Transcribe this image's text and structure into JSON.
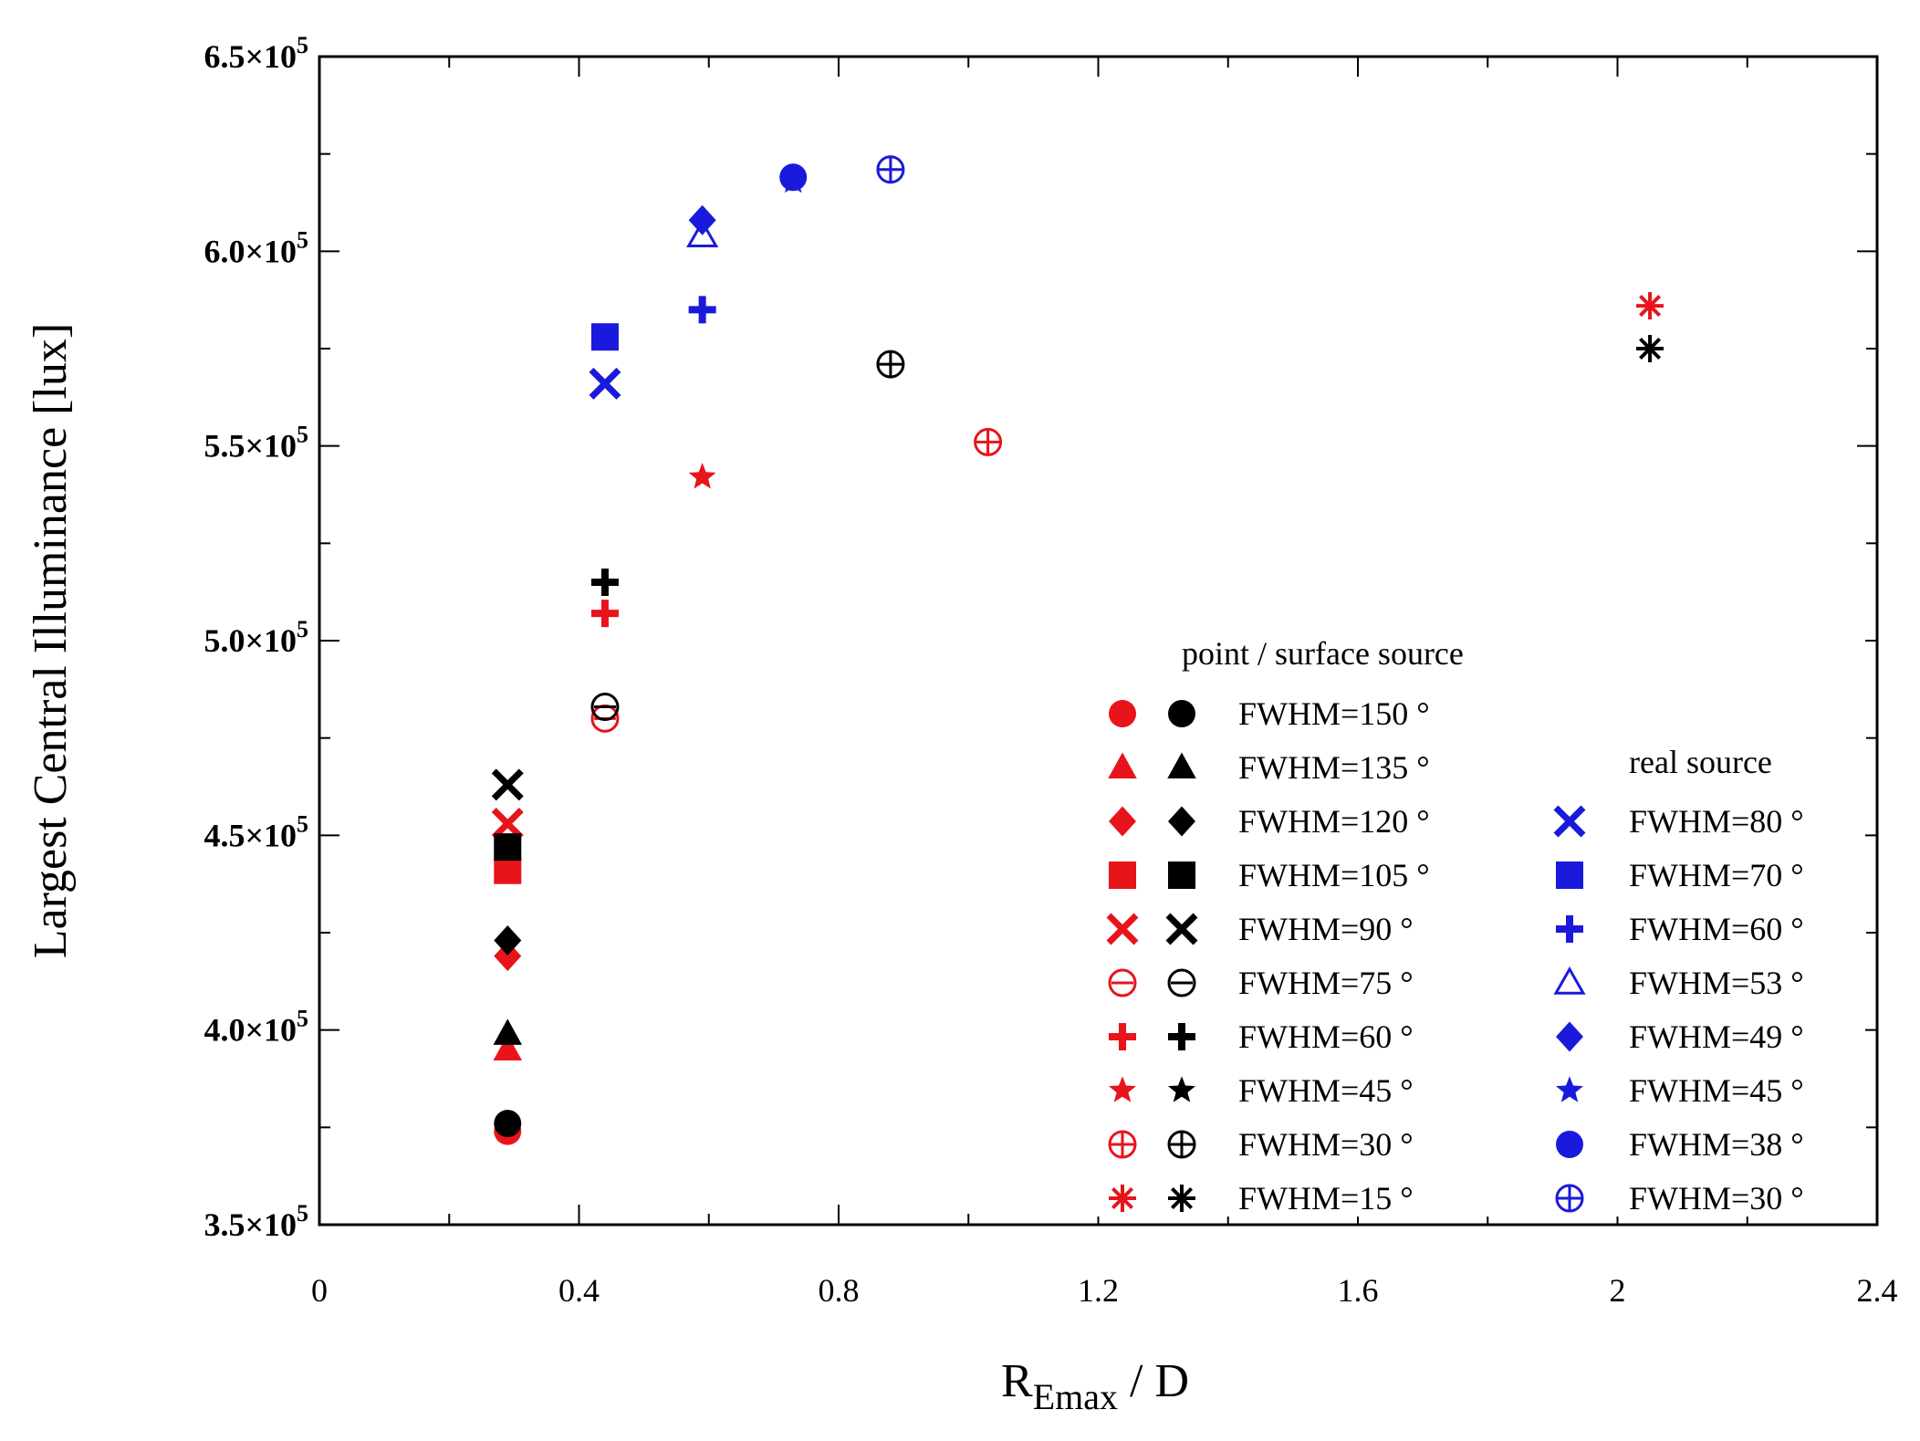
{
  "chart_data": {
    "type": "scatter",
    "title": "",
    "xlabel_main": "R",
    "xlabel_sub": "Emax",
    "xlabel_tail": " / D",
    "ylabel": "Largest Central Illuminance [lux]",
    "xlim": [
      0,
      2.4
    ],
    "ylim": [
      350000,
      650000
    ],
    "xticks": [
      0,
      0.4,
      0.8,
      1.2,
      1.6,
      2,
      2.4
    ],
    "xtick_labels": [
      "0",
      "0.4",
      "0.8",
      "1.2",
      "1.6",
      "2",
      "2.4"
    ],
    "yticks": [
      350000,
      400000,
      450000,
      500000,
      550000,
      600000,
      650000
    ],
    "ytick_mantissas": [
      "3.5",
      "4.0",
      "4.5",
      "5.0",
      "5.5",
      "6.0",
      "6.5"
    ],
    "ytick_times": "×",
    "ytick_base": "10",
    "ytick_exp": "5",
    "colors": {
      "point_source": "#e8141b",
      "surface_source": "#000000",
      "real_source": "#1a1adc"
    },
    "legend": {
      "group1_title": "point / surface source",
      "group1_labels": [
        "FWHM=150 °",
        "FWHM=135 °",
        "FWHM=120 °",
        "FWHM=105 °",
        "FWHM=90 °",
        "FWHM=75 °",
        "FWHM=60 °",
        "FWHM=45 °",
        "FWHM=30 °",
        "FWHM=15 °"
      ],
      "group1_markers": [
        "circle",
        "triangle",
        "diamond",
        "square",
        "x",
        "circle-minus",
        "plus",
        "star",
        "circle-plus",
        "asterisk"
      ],
      "group2_title": "real source",
      "group2_labels": [
        "FWHM=80 °",
        "FWHM=70 °",
        "FWHM=60 °",
        "FWHM=53 °",
        "FWHM=49 °",
        "FWHM=45 °",
        "FWHM=38 °",
        "FWHM=30 °"
      ],
      "group2_markers": [
        "x",
        "square",
        "plus",
        "triangle-open",
        "diamond",
        "star",
        "circle",
        "circle-plus"
      ]
    },
    "series": [
      {
        "name": "point source",
        "color": "#e8141b",
        "points": [
          {
            "fwhm": 150,
            "marker": "circle",
            "x": 0.29,
            "y": 374000
          },
          {
            "fwhm": 135,
            "marker": "triangle",
            "x": 0.29,
            "y": 395000
          },
          {
            "fwhm": 120,
            "marker": "diamond",
            "x": 0.29,
            "y": 419000
          },
          {
            "fwhm": 105,
            "marker": "square",
            "x": 0.29,
            "y": 441000
          },
          {
            "fwhm": 90,
            "marker": "x",
            "x": 0.29,
            "y": 453000
          },
          {
            "fwhm": 75,
            "marker": "circle-minus",
            "x": 0.44,
            "y": 480000
          },
          {
            "fwhm": 60,
            "marker": "plus",
            "x": 0.44,
            "y": 507000
          },
          {
            "fwhm": 45,
            "marker": "star",
            "x": 0.59,
            "y": 542000
          },
          {
            "fwhm": 30,
            "marker": "circle-plus",
            "x": 1.03,
            "y": 551000
          },
          {
            "fwhm": 15,
            "marker": "asterisk",
            "x": 2.05,
            "y": 586000
          }
        ]
      },
      {
        "name": "surface source",
        "color": "#000000",
        "points": [
          {
            "fwhm": 150,
            "marker": "circle",
            "x": 0.29,
            "y": 376000
          },
          {
            "fwhm": 135,
            "marker": "triangle",
            "x": 0.29,
            "y": 399000
          },
          {
            "fwhm": 120,
            "marker": "diamond",
            "x": 0.29,
            "y": 423000
          },
          {
            "fwhm": 105,
            "marker": "square",
            "x": 0.29,
            "y": 447000
          },
          {
            "fwhm": 90,
            "marker": "x",
            "x": 0.29,
            "y": 463000
          },
          {
            "fwhm": 75,
            "marker": "circle-minus",
            "x": 0.44,
            "y": 483000
          },
          {
            "fwhm": 60,
            "marker": "plus",
            "x": 0.44,
            "y": 515000
          },
          {
            "fwhm": 30,
            "marker": "circle-plus",
            "x": 0.88,
            "y": 571000
          },
          {
            "fwhm": 15,
            "marker": "asterisk",
            "x": 2.05,
            "y": 575000
          }
        ]
      },
      {
        "name": "real source",
        "color": "#1a1adc",
        "points": [
          {
            "fwhm": 80,
            "marker": "x",
            "x": 0.44,
            "y": 566000
          },
          {
            "fwhm": 70,
            "marker": "square",
            "x": 0.44,
            "y": 578000
          },
          {
            "fwhm": 60,
            "marker": "plus",
            "x": 0.59,
            "y": 585000
          },
          {
            "fwhm": 53,
            "marker": "triangle-open",
            "x": 0.59,
            "y": 604000
          },
          {
            "fwhm": 49,
            "marker": "diamond",
            "x": 0.59,
            "y": 608000
          },
          {
            "fwhm": 45,
            "marker": "star",
            "x": 0.73,
            "y": 618000
          },
          {
            "fwhm": 38,
            "marker": "circle",
            "x": 0.73,
            "y": 619000
          },
          {
            "fwhm": 30,
            "marker": "circle-plus",
            "x": 0.88,
            "y": 621000
          }
        ]
      }
    ]
  }
}
